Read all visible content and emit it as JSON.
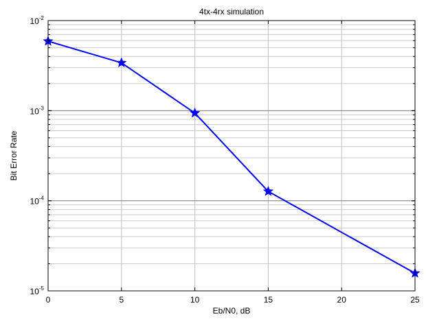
{
  "chart_data": {
    "type": "line",
    "title": "4tx-4rx simulation",
    "xlabel": "Eb/N0, dB",
    "ylabel": "Bit Error Rate",
    "xlim": [
      0,
      25
    ],
    "ylim": [
      1e-05,
      0.01
    ],
    "yscale": "log",
    "grid": true,
    "x_ticks": [
      "0",
      "5",
      "10",
      "15",
      "20",
      "25"
    ],
    "y_ticks": [
      {
        "base": "10",
        "exp": "-2"
      },
      {
        "base": "10",
        "exp": "-3"
      },
      {
        "base": "10",
        "exp": "-4"
      },
      {
        "base": "10",
        "exp": "-5"
      }
    ],
    "series": [
      {
        "color": "#0000ff",
        "marker": "star",
        "x": [
          0,
          5,
          10,
          15,
          25
        ],
        "y": [
          0.0059,
          0.0034,
          0.00094,
          0.000127,
          1.57e-05
        ],
        "connected": [
          true,
          true,
          true,
          true,
          false
        ]
      }
    ]
  }
}
